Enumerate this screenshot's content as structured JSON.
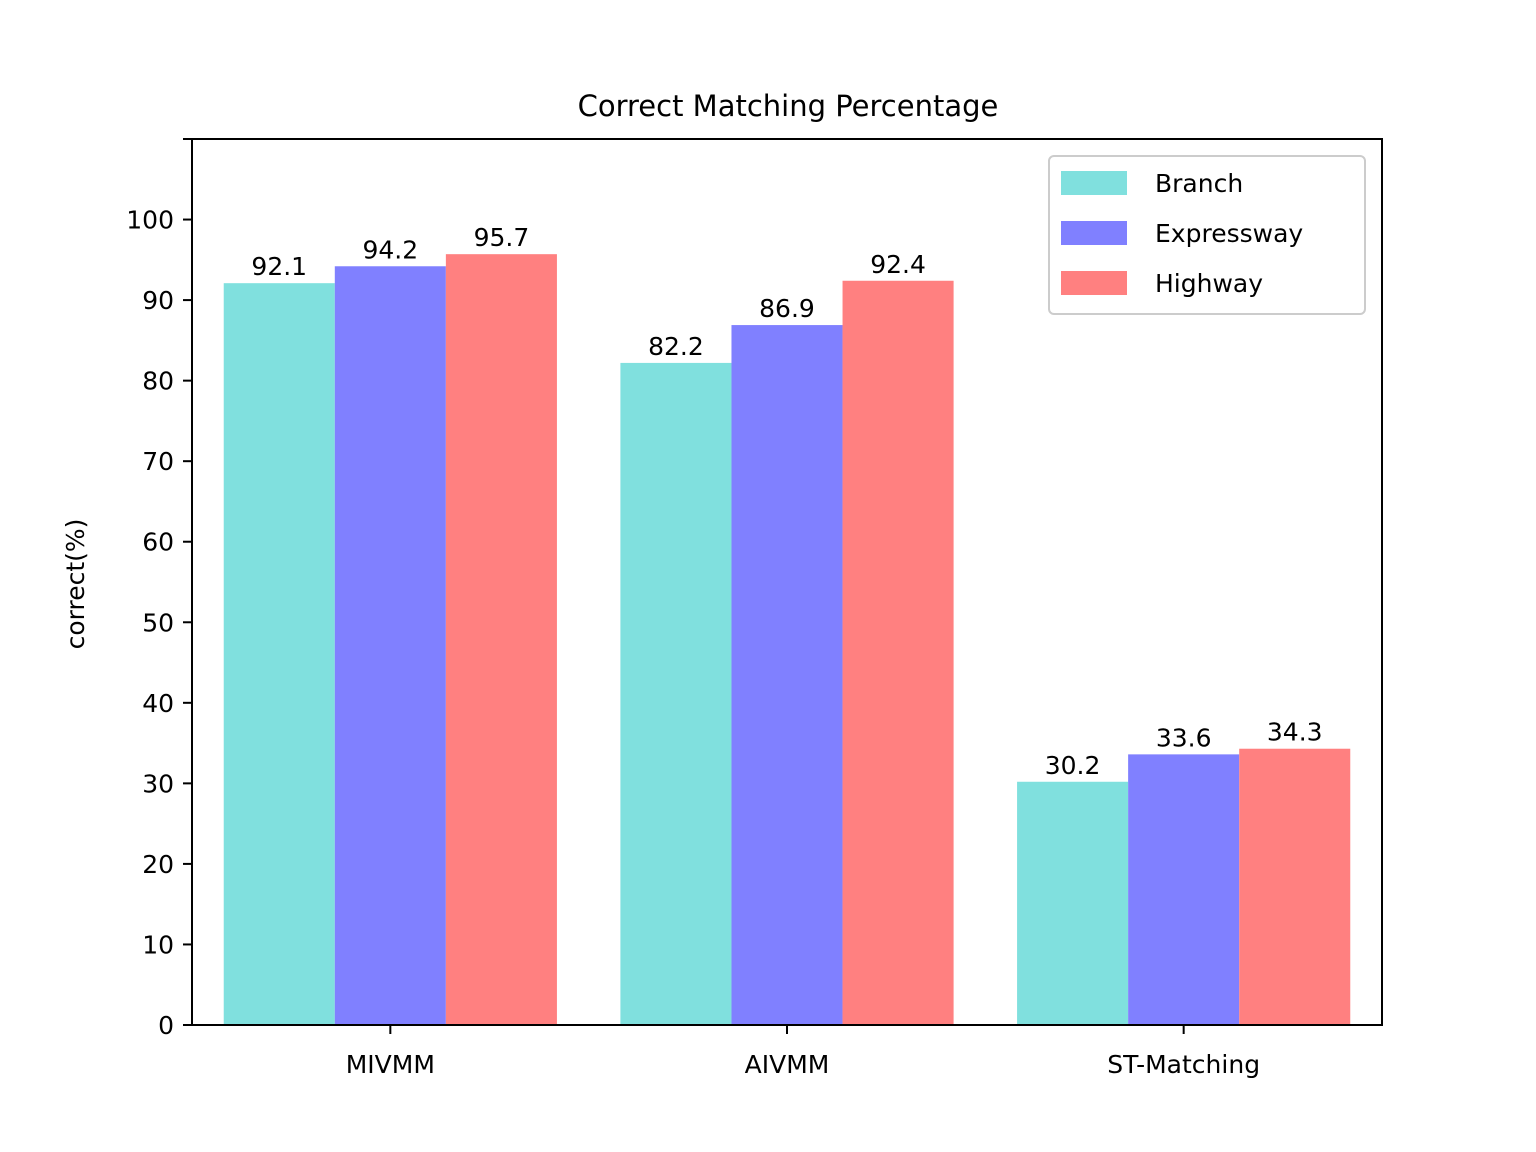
{
  "chart_data": {
    "type": "bar",
    "title": "Correct Matching Percentage",
    "xlabel": "",
    "ylabel": "correct(%)",
    "categories": [
      "MIVMM",
      "AIVMM",
      "ST-Matching"
    ],
    "series": [
      {
        "name": "Branch",
        "values": [
          92.1,
          82.2,
          30.2
        ],
        "color": "#80e0de"
      },
      {
        "name": "Expressway",
        "values": [
          94.2,
          86.9,
          33.6
        ],
        "color": "#8080ff"
      },
      {
        "name": "Highway",
        "values": [
          95.7,
          92.4,
          34.3
        ],
        "color": "#ff8080"
      }
    ],
    "data_labels": {
      "MIVMM": [
        "92.1",
        "94.2",
        "95.7"
      ],
      "AIVMM": [
        "82.2",
        "86.9",
        "92.4"
      ],
      "ST-Matching": [
        "30.2",
        "33.6",
        "34.3"
      ]
    },
    "yticks": [
      "0",
      "10",
      "20",
      "30",
      "40",
      "50",
      "60",
      "70",
      "80",
      "90",
      "100"
    ],
    "ylim": [
      0,
      110
    ],
    "grid": false,
    "legend": "top-right"
  }
}
